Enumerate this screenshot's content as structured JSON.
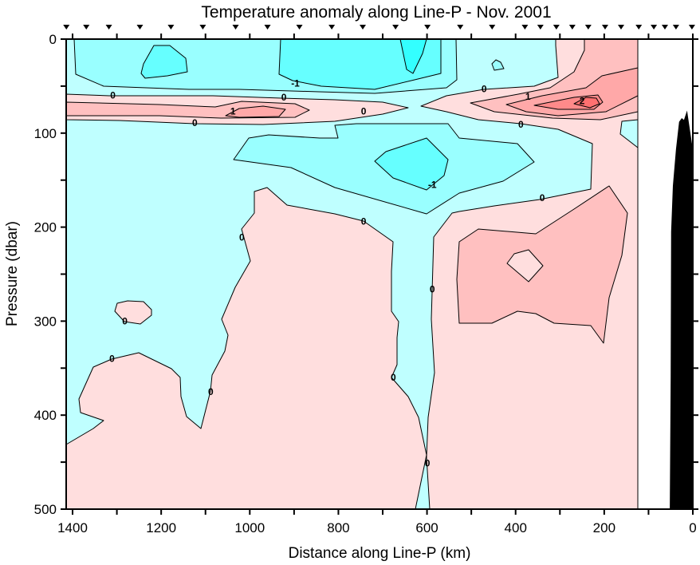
{
  "chart_data": {
    "type": "heatmap",
    "subtype": "filled-contour",
    "title": "Temperature anomaly along Line-P - Nov. 2001",
    "xlabel": "Distance along Line-P (km)",
    "ylabel": "Pressure (dbar)",
    "xlim": [
      1415,
      0
    ],
    "ylim": [
      0,
      500
    ],
    "data_xmin_km": 124,
    "xticks": [
      1400,
      1200,
      1000,
      800,
      600,
      400,
      200,
      0
    ],
    "xminor_step": 100,
    "yticks": [
      0,
      100,
      200,
      300,
      400,
      500
    ],
    "yminor_step": 50,
    "contour_levels": [
      -1.5,
      -1,
      -0.5,
      0,
      0.5,
      1,
      1.5,
      2
    ],
    "colors": {
      "below_-1.5": "#33ffff",
      "-1.5_to_-1": "#66ffff",
      "-1_to_-0.5": "#99ffff",
      "-0.5_to_0": "#bfffff",
      "0_to_0.5": "#ffdede",
      "0.5_to_1": "#ffc0c0",
      "1_to_1.5": "#ffa8a8",
      "1.5_to_2": "#ff8a8a",
      "above_2": "#ff7070",
      "bathymetry": "#000000"
    },
    "contour_labels": [
      {
        "text": "2",
        "km": 250,
        "dbar": 66
      },
      {
        "text": "1",
        "km": 372,
        "dbar": 61
      },
      {
        "text": "0",
        "km": 471,
        "dbar": 53
      },
      {
        "text": "0",
        "km": 388,
        "dbar": 91
      },
      {
        "text": "0",
        "km": 1309,
        "dbar": 60
      },
      {
        "text": "0",
        "km": 923,
        "dbar": 62
      },
      {
        "text": "1",
        "km": 1038,
        "dbar": 77
      },
      {
        "text": "0",
        "km": 1124,
        "dbar": 89
      },
      {
        "text": "0",
        "km": 743,
        "dbar": 77
      },
      {
        "text": "-1",
        "km": 897,
        "dbar": 47
      },
      {
        "text": "-1",
        "km": 588,
        "dbar": 155
      },
      {
        "text": "0",
        "km": 340,
        "dbar": 169
      },
      {
        "text": "0",
        "km": 743,
        "dbar": 194
      },
      {
        "text": "0",
        "km": 1018,
        "dbar": 211
      },
      {
        "text": "0",
        "km": 1282,
        "dbar": 300
      },
      {
        "text": "0",
        "km": 1311,
        "dbar": 340
      },
      {
        "text": "0",
        "km": 1088,
        "dbar": 375
      },
      {
        "text": "0",
        "km": 588,
        "dbar": 266
      },
      {
        "text": "0",
        "km": 676,
        "dbar": 360
      },
      {
        "text": "0",
        "km": 599,
        "dbar": 451
      }
    ],
    "stations_km": [
      1414,
      1369,
      1318,
      1248,
      1178,
      1106,
      1032,
      960,
      888,
      815,
      745,
      671,
      599,
      525,
      453,
      379,
      344,
      308,
      272,
      236,
      198,
      162,
      122,
      88,
      63,
      38,
      2
    ],
    "bathymetry": [
      [
        52,
        500
      ],
      [
        50,
        360
      ],
      [
        49,
        205
      ],
      [
        45,
        156
      ],
      [
        38,
        117
      ],
      [
        31,
        88
      ],
      [
        25,
        84
      ],
      [
        20,
        86
      ],
      [
        13,
        76
      ],
      [
        2,
        111
      ],
      [
        0,
        111
      ],
      [
        0,
        500
      ]
    ]
  }
}
